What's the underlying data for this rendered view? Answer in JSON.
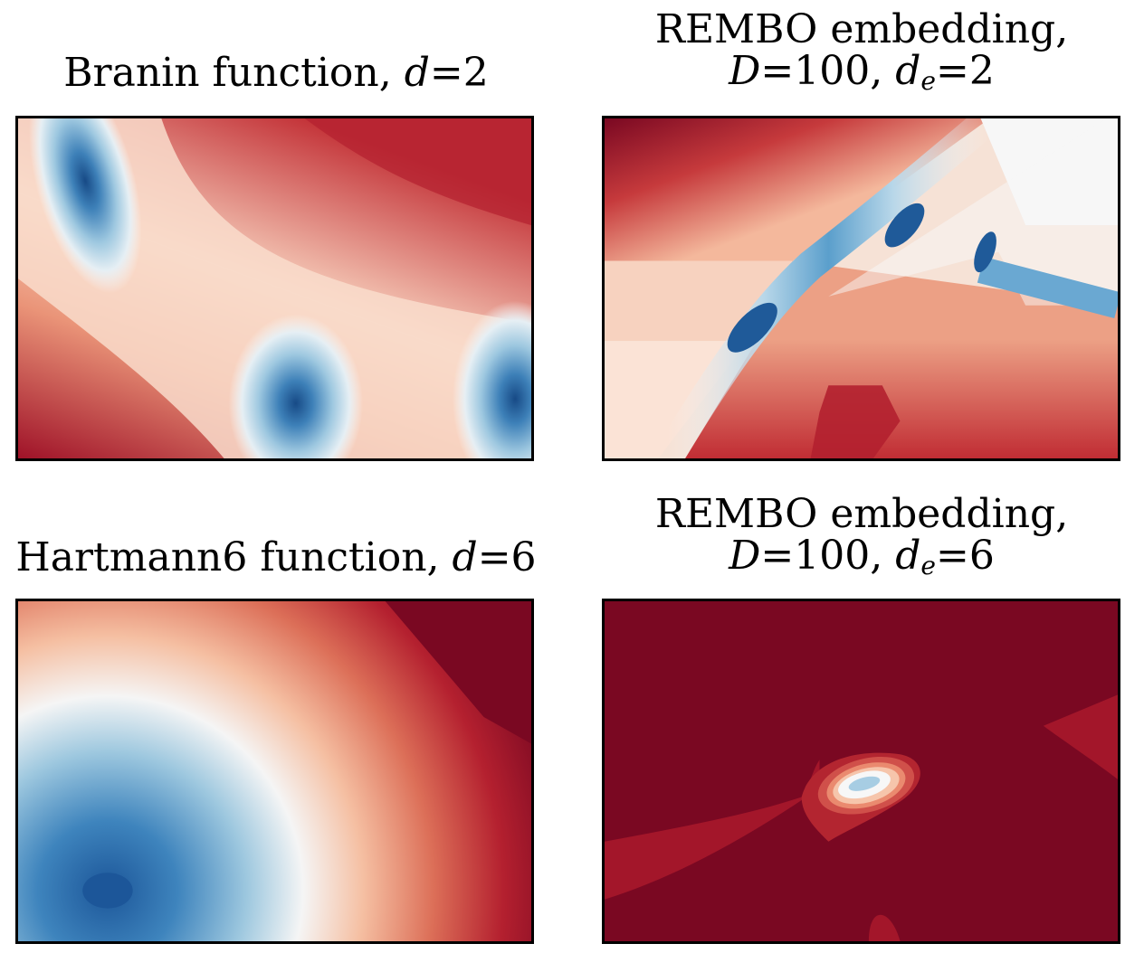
{
  "chart_data": [
    {
      "type": "heatmap",
      "title": "Branin function, d=2",
      "title_parts": {
        "name": "Branin function, ",
        "var": "d",
        "eq": "=2"
      },
      "colormap": "RdBu",
      "axes_ticks": false,
      "minima_count": 3
    },
    {
      "type": "heatmap",
      "title": "REMBO embedding, D=100, d_e=2",
      "title_parts": {
        "line1": "REMBO embedding,",
        "var1": "D",
        "eq1": "=100, ",
        "var2": "d",
        "sub2": "e",
        "eq2": "=2"
      },
      "colormap": "RdBu",
      "axes_ticks": false
    },
    {
      "type": "heatmap",
      "title": "Hartmann6 function, d=6",
      "title_parts": {
        "name": "Hartmann6 function, ",
        "var": "d",
        "eq": "=6"
      },
      "colormap": "RdBu",
      "axes_ticks": false
    },
    {
      "type": "heatmap",
      "title": "REMBO embedding, D=100, d_e=6",
      "title_parts": {
        "line1": "REMBO embedding,",
        "var1": "D",
        "eq1": "=100, ",
        "var2": "d",
        "sub2": "e",
        "eq2": "=6"
      },
      "colormap": "RdBu",
      "axes_ticks": false
    }
  ],
  "colors": {
    "dark_red": "#7a0822",
    "red": "#b2182b",
    "salmon": "#e3826a",
    "peach": "#f7c9ae",
    "white": "#f7f7f7",
    "light_blue": "#c4dfec",
    "blue": "#4a96c8",
    "dark_blue": "#1f5a99"
  }
}
